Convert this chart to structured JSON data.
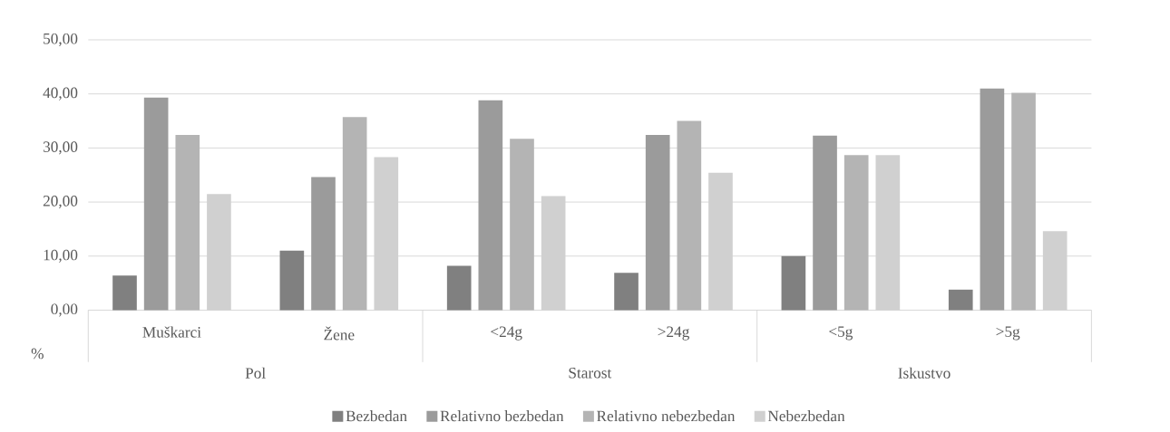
{
  "chart_data": {
    "type": "bar",
    "ylabel": "%",
    "categories": [
      "Muškarci",
      "Žene",
      "<24g",
      ">24g",
      "<5g",
      ">5g"
    ],
    "series": [
      {
        "name": "Bezbedan",
        "color": "#808080",
        "values": [
          6.4,
          11.0,
          8.2,
          6.9,
          10.0,
          3.8
        ]
      },
      {
        "name": "Relativno bezbedan",
        "color": "#9b9b9b",
        "values": [
          39.3,
          24.6,
          38.8,
          32.4,
          32.3,
          41.0
        ]
      },
      {
        "name": "Relativno nebezbedan",
        "color": "#b4b4b4",
        "values": [
          32.4,
          35.7,
          31.7,
          35.0,
          28.7,
          40.2
        ]
      },
      {
        "name": "Nebezbedan",
        "color": "#d0d0d0",
        "values": [
          21.5,
          28.3,
          21.1,
          25.4,
          28.7,
          14.6
        ]
      }
    ],
    "ylim": [
      0,
      50
    ],
    "yticks": [
      {
        "value": 0,
        "label": "0,00"
      },
      {
        "value": 10,
        "label": "10,00"
      },
      {
        "value": 20,
        "label": "20,00"
      },
      {
        "value": 30,
        "label": "30,00"
      },
      {
        "value": 40,
        "label": "40,00"
      },
      {
        "value": 50,
        "label": "50,00"
      }
    ],
    "annotations": [
      "Pol",
      "Starost",
      "Iskustvo"
    ],
    "grid": "y",
    "legend": "bottom"
  }
}
